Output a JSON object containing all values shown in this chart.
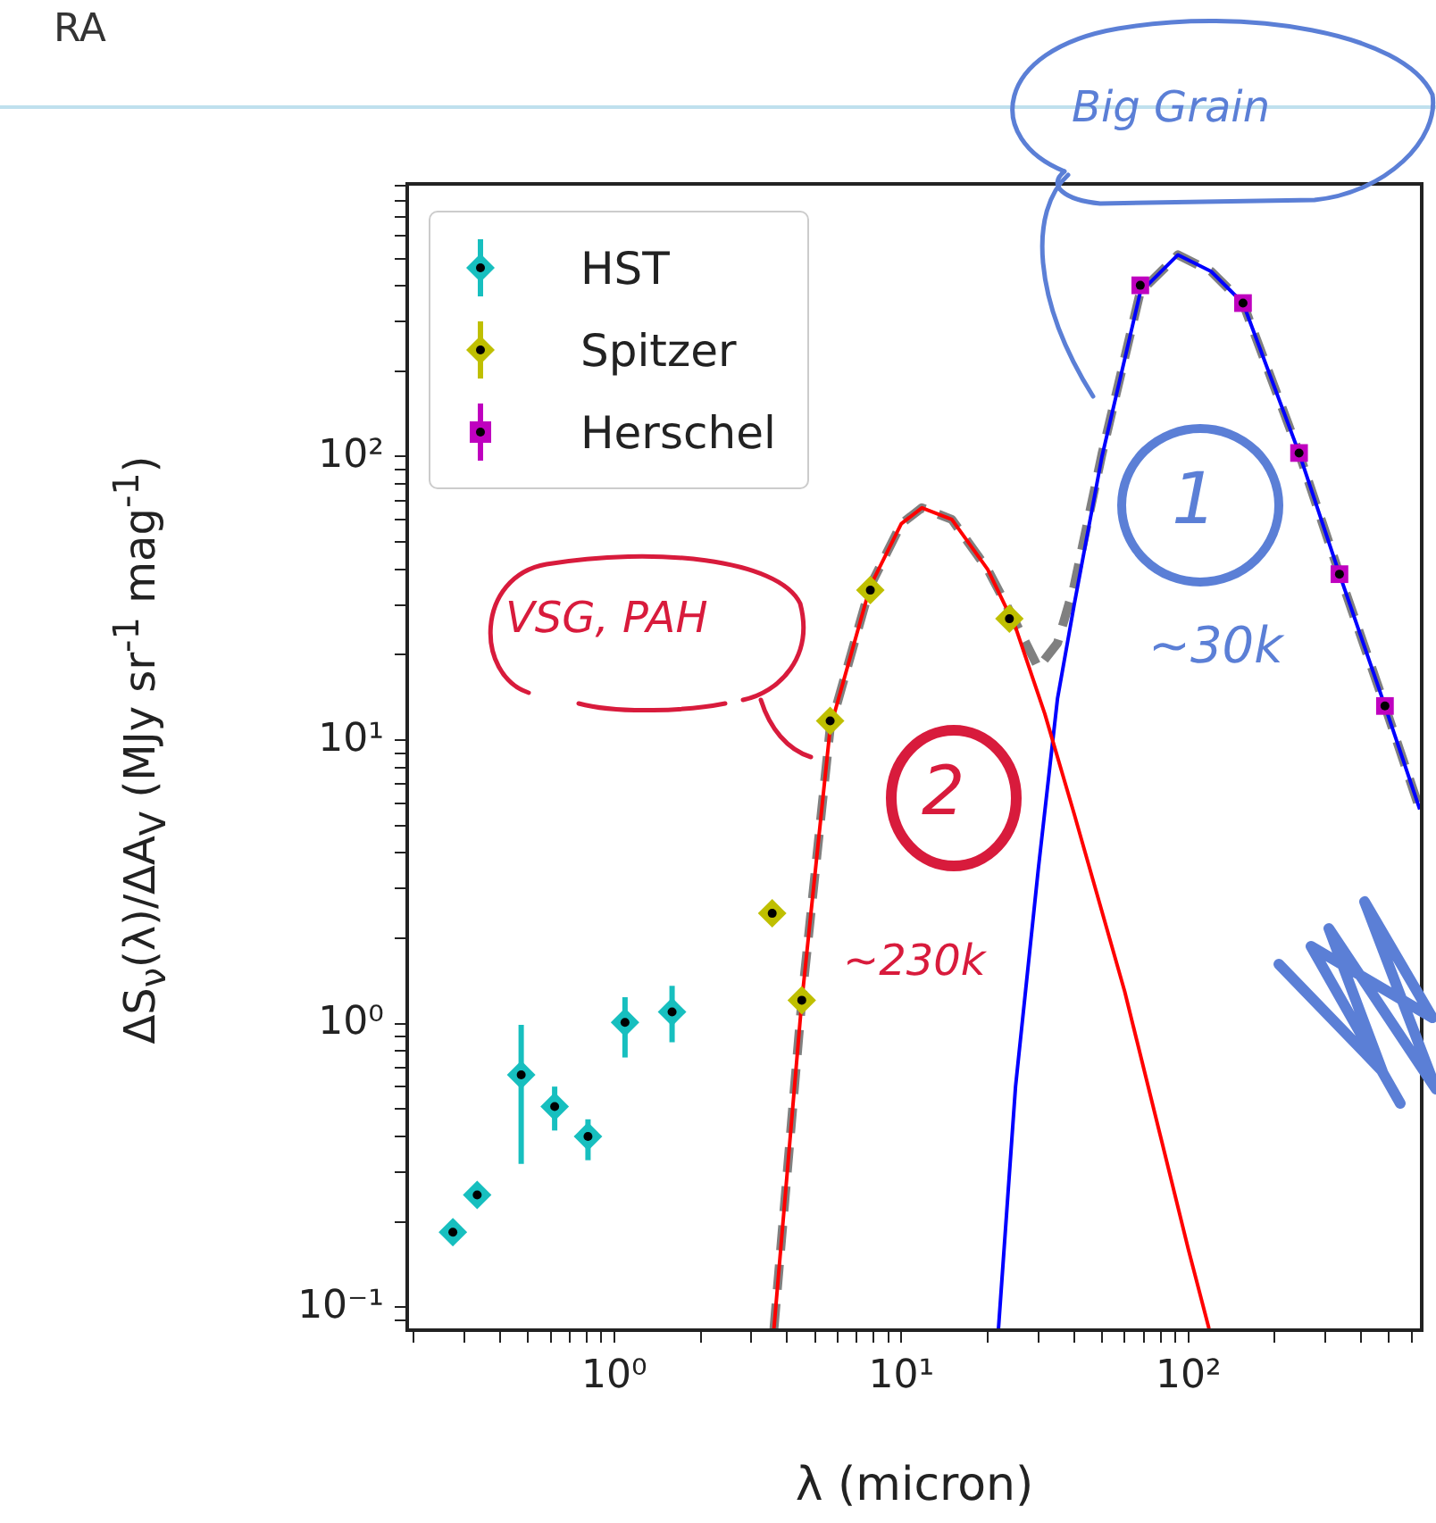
{
  "chart_data": {
    "type": "scatter",
    "xlabel": "λ (micron)",
    "ylabel": "ΔS$_{ν}$(λ)/ΔA$_{V}$  (MJy sr$^{-1}$ mag$^{-1}$)",
    "log": "xy",
    "grid": false,
    "legend": "top left",
    "xlim": [
      0.19,
      650
    ],
    "ylim": [
      0.083,
      916
    ],
    "xticks": [
      {
        "value": 0.2,
        "label": null
      },
      {
        "value": 0.3,
        "label": null
      },
      {
        "value": 0.4,
        "label": null
      },
      {
        "value": 0.5,
        "label": null
      },
      {
        "value": 0.6,
        "label": null
      },
      {
        "value": 0.7,
        "label": null
      },
      {
        "value": 0.8,
        "label": null
      },
      {
        "value": 0.9,
        "label": null
      },
      {
        "value": 1,
        "label": "10⁰"
      },
      {
        "value": 2,
        "label": null
      },
      {
        "value": 3,
        "label": null
      },
      {
        "value": 4,
        "label": null
      },
      {
        "value": 5,
        "label": null
      },
      {
        "value": 6,
        "label": null
      },
      {
        "value": 7,
        "label": null
      },
      {
        "value": 8,
        "label": null
      },
      {
        "value": 9,
        "label": null
      },
      {
        "value": 10,
        "label": "10¹"
      },
      {
        "value": 20,
        "label": null
      },
      {
        "value": 30,
        "label": null
      },
      {
        "value": 40,
        "label": null
      },
      {
        "value": 50,
        "label": null
      },
      {
        "value": 60,
        "label": null
      },
      {
        "value": 70,
        "label": null
      },
      {
        "value": 80,
        "label": null
      },
      {
        "value": 90,
        "label": null
      },
      {
        "value": 100,
        "label": "10²"
      },
      {
        "value": 200,
        "label": null
      },
      {
        "value": 300,
        "label": null
      },
      {
        "value": 400,
        "label": null
      },
      {
        "value": 500,
        "label": null
      },
      {
        "value": 600,
        "label": null
      }
    ],
    "yticks": [
      {
        "value": 0.09,
        "label": null
      },
      {
        "value": 0.1,
        "label": "10⁻¹"
      },
      {
        "value": 0.2,
        "label": null
      },
      {
        "value": 0.3,
        "label": null
      },
      {
        "value": 0.4,
        "label": null
      },
      {
        "value": 0.5,
        "label": null
      },
      {
        "value": 0.6,
        "label": null
      },
      {
        "value": 0.7,
        "label": null
      },
      {
        "value": 0.8,
        "label": null
      },
      {
        "value": 0.9,
        "label": null
      },
      {
        "value": 1,
        "label": "10⁰"
      },
      {
        "value": 2,
        "label": null
      },
      {
        "value": 3,
        "label": null
      },
      {
        "value": 4,
        "label": null
      },
      {
        "value": 5,
        "label": null
      },
      {
        "value": 6,
        "label": null
      },
      {
        "value": 7,
        "label": null
      },
      {
        "value": 8,
        "label": null
      },
      {
        "value": 9,
        "label": null
      },
      {
        "value": 10,
        "label": "10¹"
      },
      {
        "value": 20,
        "label": null
      },
      {
        "value": 30,
        "label": null
      },
      {
        "value": 40,
        "label": null
      },
      {
        "value": 50,
        "label": null
      },
      {
        "value": 60,
        "label": null
      },
      {
        "value": 70,
        "label": null
      },
      {
        "value": 80,
        "label": null
      },
      {
        "value": 90,
        "label": null
      },
      {
        "value": 100,
        "label": "10²"
      },
      {
        "value": 200,
        "label": null
      },
      {
        "value": 300,
        "label": null
      },
      {
        "value": 400,
        "label": null
      },
      {
        "value": 500,
        "label": null
      },
      {
        "value": 600,
        "label": null
      },
      {
        "value": 700,
        "label": null
      },
      {
        "value": 800,
        "label": null
      },
      {
        "value": 900,
        "label": null
      }
    ],
    "series": [
      {
        "name": "HST",
        "marker": "diamond",
        "color": "#17bfbf",
        "x": [
          0.274,
          0.333,
          0.474,
          0.62,
          0.81,
          1.09,
          1.59
        ],
        "values": [
          0.184,
          0.249,
          0.66,
          0.51,
          0.4,
          1.01,
          1.1
        ],
        "errors": [
          null,
          null,
          [
            0.32,
            0.99
          ],
          [
            0.42,
            0.6
          ],
          [
            0.33,
            0.46
          ],
          [
            0.76,
            1.24
          ],
          [
            0.86,
            1.36
          ]
        ]
      },
      {
        "name": "Spitzer",
        "marker": "diamond",
        "color": "#bfbf00",
        "x": [
          3.55,
          4.5,
          5.65,
          7.8,
          23.8
        ],
        "values": [
          2.45,
          1.21,
          11.7,
          33.8,
          26.8
        ]
      },
      {
        "name": "Herschel",
        "marker": "square",
        "color": "#bf00bf",
        "x": [
          68,
          155,
          243,
          336,
          484
        ],
        "values": [
          402,
          348,
          103,
          38.5,
          13.2
        ]
      },
      {
        "type": "line",
        "color": "#ff0000",
        "x": [
          3.6,
          4.5,
          5.65,
          7.8,
          10,
          11.8,
          15,
          20,
          25,
          31.6,
          40,
          60,
          80,
          100,
          118
        ],
        "values": [
          0.084,
          1.2,
          11,
          35,
          58,
          66,
          60,
          40,
          25,
          12.4,
          5.5,
          1.3,
          0.4,
          0.16,
          0.084
        ]
      },
      {
        "type": "line",
        "color": "#0000ff",
        "x": [
          21.8,
          25,
          30,
          35,
          40,
          50,
          68,
          92,
          120,
          155,
          243,
          336,
          484,
          640
        ],
        "values": [
          0.084,
          0.6,
          3.5,
          14,
          30,
          100,
          380,
          515,
          450,
          348,
          103,
          38.5,
          13.2,
          5.7
        ]
      },
      {
        "type": "line",
        "color": "#808080",
        "line_style": "dashed",
        "x": [
          3.6,
          4.5,
          5.65,
          7.8,
          10,
          11.8,
          15,
          20,
          25,
          30,
          35,
          40,
          50,
          68,
          92,
          120,
          155,
          243,
          336,
          484,
          640
        ],
        "values": [
          0.084,
          1.2,
          11,
          35,
          58,
          66,
          60,
          40,
          26,
          18,
          22,
          35,
          102,
          381,
          515,
          450,
          348,
          103,
          38.5,
          13.2,
          5.7
        ]
      }
    ],
    "annotations": [
      "RA",
      "Big Grain",
      "VSG, PAH",
      "1",
      "~30k",
      "2",
      "~230k"
    ]
  }
}
